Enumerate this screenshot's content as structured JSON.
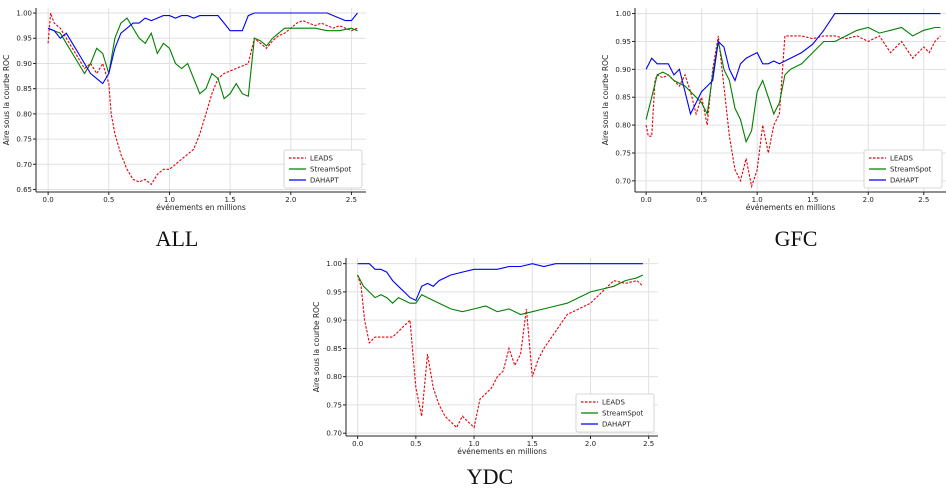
{
  "chart_data": [
    {
      "type": "line",
      "caption": "ALL",
      "xlabel": "événements en millions",
      "ylabel": "Aire sous la courbe ROC",
      "xlim": [
        -0.1,
        2.62
      ],
      "ylim": [
        0.645,
        1.01
      ],
      "xticks": [
        0.0,
        0.5,
        1.0,
        1.5,
        2.0,
        2.5
      ],
      "xtick_labels": [
        "0.0",
        "0.5",
        "1.0",
        "1.5",
        "2.0",
        "2.5"
      ],
      "yticks": [
        0.65,
        0.7,
        0.75,
        0.8,
        0.85,
        0.9,
        0.95,
        1.0
      ],
      "ytick_labels": [
        "0.65",
        "0.70",
        "0.75",
        "0.80",
        "0.85",
        "0.90",
        "0.95",
        "1.00"
      ],
      "grid": true,
      "legend_position": "lower-right",
      "series": [
        {
          "name": "LEADS",
          "color": "#e8000b",
          "style": "dashed",
          "x": [
            0.0,
            0.02,
            0.05,
            0.1,
            0.15,
            0.2,
            0.25,
            0.3,
            0.35,
            0.4,
            0.45,
            0.5,
            0.52,
            0.55,
            0.6,
            0.65,
            0.7,
            0.75,
            0.8,
            0.85,
            0.9,
            0.95,
            1.0,
            1.05,
            1.1,
            1.15,
            1.2,
            1.25,
            1.3,
            1.35,
            1.4,
            1.45,
            1.5,
            1.55,
            1.6,
            1.65,
            1.7,
            1.75,
            1.8,
            1.85,
            1.9,
            1.95,
            2.0,
            2.05,
            2.1,
            2.15,
            2.2,
            2.25,
            2.3,
            2.35,
            2.4,
            2.45,
            2.5,
            2.55
          ],
          "y": [
            0.94,
            1.0,
            0.98,
            0.97,
            0.95,
            0.93,
            0.91,
            0.89,
            0.9,
            0.88,
            0.9,
            0.86,
            0.8,
            0.76,
            0.72,
            0.69,
            0.67,
            0.665,
            0.67,
            0.66,
            0.68,
            0.69,
            0.69,
            0.7,
            0.71,
            0.72,
            0.73,
            0.76,
            0.8,
            0.84,
            0.87,
            0.88,
            0.885,
            0.89,
            0.895,
            0.9,
            0.95,
            0.94,
            0.93,
            0.945,
            0.955,
            0.96,
            0.97,
            0.98,
            0.985,
            0.98,
            0.975,
            0.98,
            0.975,
            0.97,
            0.975,
            0.97,
            0.965,
            0.97
          ]
        },
        {
          "name": "StreamSpot",
          "color": "#008000",
          "style": "solid",
          "x": [
            0.0,
            0.05,
            0.1,
            0.15,
            0.2,
            0.25,
            0.3,
            0.35,
            0.4,
            0.45,
            0.5,
            0.55,
            0.6,
            0.65,
            0.7,
            0.75,
            0.8,
            0.85,
            0.9,
            0.95,
            1.0,
            1.05,
            1.1,
            1.15,
            1.2,
            1.25,
            1.3,
            1.35,
            1.4,
            1.45,
            1.5,
            1.55,
            1.6,
            1.65,
            1.7,
            1.75,
            1.8,
            1.85,
            1.9,
            1.95,
            2.0,
            2.1,
            2.2,
            2.3,
            2.4,
            2.5,
            2.55
          ],
          "y": [
            0.97,
            0.965,
            0.96,
            0.94,
            0.92,
            0.9,
            0.88,
            0.9,
            0.93,
            0.92,
            0.88,
            0.95,
            0.98,
            0.99,
            0.97,
            0.95,
            0.94,
            0.96,
            0.92,
            0.94,
            0.93,
            0.9,
            0.89,
            0.9,
            0.87,
            0.84,
            0.85,
            0.88,
            0.87,
            0.83,
            0.84,
            0.86,
            0.84,
            0.835,
            0.95,
            0.945,
            0.935,
            0.95,
            0.96,
            0.97,
            0.97,
            0.97,
            0.97,
            0.965,
            0.965,
            0.97,
            0.965
          ]
        },
        {
          "name": "DAHAPT",
          "color": "#0000ff",
          "style": "solid",
          "x": [
            0.0,
            0.05,
            0.1,
            0.15,
            0.2,
            0.25,
            0.3,
            0.35,
            0.4,
            0.45,
            0.5,
            0.55,
            0.6,
            0.65,
            0.7,
            0.75,
            0.8,
            0.85,
            0.9,
            0.95,
            1.0,
            1.05,
            1.1,
            1.15,
            1.2,
            1.25,
            1.3,
            1.35,
            1.4,
            1.45,
            1.5,
            1.55,
            1.6,
            1.65,
            1.7,
            1.8,
            1.9,
            2.0,
            2.1,
            2.2,
            2.3,
            2.4,
            2.45,
            2.5,
            2.55
          ],
          "y": [
            0.97,
            0.965,
            0.95,
            0.96,
            0.94,
            0.92,
            0.9,
            0.88,
            0.87,
            0.86,
            0.88,
            0.93,
            0.96,
            0.97,
            0.98,
            0.98,
            0.99,
            0.985,
            0.99,
            0.995,
            0.995,
            0.99,
            0.995,
            0.995,
            0.99,
            0.995,
            0.995,
            0.995,
            0.995,
            0.98,
            0.965,
            0.965,
            0.965,
            0.995,
            1.0,
            1.0,
            1.0,
            1.0,
            1.0,
            1.0,
            1.0,
            0.99,
            0.985,
            0.985,
            1.0
          ]
        }
      ]
    },
    {
      "type": "line",
      "caption": "GFC",
      "xlabel": "événements en millions",
      "ylabel": "Aire sous la courbe ROC",
      "xlim": [
        -0.1,
        2.7
      ],
      "ylim": [
        0.68,
        1.01
      ],
      "xticks": [
        0.0,
        0.5,
        1.0,
        1.5,
        2.0,
        2.5
      ],
      "xtick_labels": [
        "0.0",
        "0.5",
        "1.0",
        "1.5",
        "2.0",
        "2.5"
      ],
      "yticks": [
        0.7,
        0.75,
        0.8,
        0.85,
        0.9,
        0.95,
        1.0
      ],
      "ytick_labels": [
        "0.70",
        "0.75",
        "0.80",
        "0.85",
        "0.90",
        "0.95",
        "1.00"
      ],
      "grid": true,
      "legend_position": "lower-right",
      "series": [
        {
          "name": "LEADS",
          "color": "#e8000b",
          "style": "dashed",
          "x": [
            0.0,
            0.02,
            0.05,
            0.08,
            0.1,
            0.15,
            0.2,
            0.25,
            0.3,
            0.35,
            0.4,
            0.45,
            0.5,
            0.55,
            0.6,
            0.65,
            0.7,
            0.75,
            0.8,
            0.85,
            0.9,
            0.95,
            1.0,
            1.05,
            1.1,
            1.15,
            1.2,
            1.25,
            1.3,
            1.4,
            1.5,
            1.6,
            1.7,
            1.8,
            1.9,
            2.0,
            2.1,
            2.2,
            2.3,
            2.4,
            2.5,
            2.55,
            2.6,
            2.65
          ],
          "y": [
            0.8,
            0.78,
            0.78,
            0.88,
            0.89,
            0.885,
            0.89,
            0.88,
            0.87,
            0.89,
            0.86,
            0.82,
            0.85,
            0.8,
            0.9,
            0.96,
            0.87,
            0.78,
            0.72,
            0.7,
            0.74,
            0.69,
            0.72,
            0.8,
            0.75,
            0.8,
            0.82,
            0.96,
            0.96,
            0.96,
            0.955,
            0.96,
            0.96,
            0.955,
            0.96,
            0.95,
            0.96,
            0.93,
            0.95,
            0.92,
            0.94,
            0.93,
            0.95,
            0.96
          ]
        },
        {
          "name": "StreamSpot",
          "color": "#008000",
          "style": "solid",
          "x": [
            0.0,
            0.05,
            0.1,
            0.15,
            0.2,
            0.25,
            0.3,
            0.35,
            0.4,
            0.45,
            0.5,
            0.55,
            0.6,
            0.65,
            0.7,
            0.75,
            0.8,
            0.85,
            0.9,
            0.95,
            1.0,
            1.05,
            1.1,
            1.15,
            1.2,
            1.25,
            1.3,
            1.4,
            1.5,
            1.6,
            1.7,
            1.8,
            1.9,
            2.0,
            2.1,
            2.2,
            2.3,
            2.4,
            2.5,
            2.6,
            2.65
          ],
          "y": [
            0.81,
            0.85,
            0.89,
            0.895,
            0.89,
            0.88,
            0.875,
            0.87,
            0.86,
            0.85,
            0.84,
            0.82,
            0.89,
            0.95,
            0.9,
            0.88,
            0.83,
            0.81,
            0.77,
            0.79,
            0.86,
            0.88,
            0.85,
            0.82,
            0.84,
            0.89,
            0.9,
            0.91,
            0.93,
            0.95,
            0.95,
            0.96,
            0.97,
            0.975,
            0.965,
            0.97,
            0.975,
            0.96,
            0.97,
            0.975,
            0.975
          ]
        },
        {
          "name": "DAHAPT",
          "color": "#0000ff",
          "style": "solid",
          "x": [
            0.0,
            0.05,
            0.1,
            0.15,
            0.2,
            0.25,
            0.3,
            0.35,
            0.4,
            0.45,
            0.5,
            0.55,
            0.6,
            0.65,
            0.7,
            0.75,
            0.8,
            0.85,
            0.9,
            0.95,
            1.0,
            1.05,
            1.1,
            1.15,
            1.2,
            1.3,
            1.4,
            1.5,
            1.6,
            1.7,
            1.8,
            1.9,
            2.0,
            2.1,
            2.2,
            2.3,
            2.4,
            2.5,
            2.6,
            2.65
          ],
          "y": [
            0.9,
            0.92,
            0.91,
            0.91,
            0.91,
            0.89,
            0.9,
            0.86,
            0.82,
            0.84,
            0.86,
            0.87,
            0.88,
            0.95,
            0.94,
            0.9,
            0.88,
            0.91,
            0.92,
            0.925,
            0.93,
            0.91,
            0.91,
            0.915,
            0.91,
            0.92,
            0.93,
            0.945,
            0.97,
            1.0,
            1.0,
            1.0,
            1.0,
            1.0,
            1.0,
            1.0,
            1.0,
            1.0,
            1.0,
            1.0
          ]
        }
      ]
    },
    {
      "type": "line",
      "caption": "YDC",
      "xlabel": "événements en millions",
      "ylabel": "Aire sous la courbe ROC",
      "xlim": [
        -0.1,
        2.58
      ],
      "ylim": [
        0.695,
        1.01
      ],
      "xticks": [
        0.0,
        0.5,
        1.0,
        1.5,
        2.0,
        2.5
      ],
      "xtick_labels": [
        "0.0",
        "0.5",
        "1.0",
        "1.5",
        "2.0",
        "2.5"
      ],
      "yticks": [
        0.7,
        0.75,
        0.8,
        0.85,
        0.9,
        0.95,
        1.0
      ],
      "ytick_labels": [
        "0.70",
        "0.75",
        "0.80",
        "0.85",
        "0.90",
        "0.95",
        "1.00"
      ],
      "grid": true,
      "legend_position": "lower-right",
      "series": [
        {
          "name": "LEADS",
          "color": "#e8000b",
          "style": "dashed",
          "x": [
            0.0,
            0.03,
            0.06,
            0.1,
            0.15,
            0.2,
            0.25,
            0.3,
            0.35,
            0.4,
            0.45,
            0.5,
            0.55,
            0.6,
            0.65,
            0.7,
            0.75,
            0.8,
            0.85,
            0.9,
            0.95,
            1.0,
            1.05,
            1.1,
            1.15,
            1.2,
            1.25,
            1.3,
            1.35,
            1.4,
            1.45,
            1.5,
            1.55,
            1.6,
            1.7,
            1.8,
            1.9,
            2.0,
            2.1,
            2.2,
            2.3,
            2.4,
            2.45
          ],
          "y": [
            0.98,
            0.96,
            0.9,
            0.86,
            0.87,
            0.87,
            0.87,
            0.87,
            0.88,
            0.89,
            0.9,
            0.78,
            0.73,
            0.84,
            0.78,
            0.75,
            0.73,
            0.72,
            0.71,
            0.73,
            0.72,
            0.71,
            0.76,
            0.77,
            0.78,
            0.8,
            0.81,
            0.85,
            0.82,
            0.84,
            0.92,
            0.8,
            0.83,
            0.85,
            0.88,
            0.91,
            0.92,
            0.93,
            0.95,
            0.97,
            0.965,
            0.97,
            0.96
          ]
        },
        {
          "name": "StreamSpot",
          "color": "#008000",
          "style": "solid",
          "x": [
            0.0,
            0.05,
            0.1,
            0.15,
            0.2,
            0.25,
            0.3,
            0.35,
            0.4,
            0.45,
            0.5,
            0.55,
            0.6,
            0.7,
            0.8,
            0.9,
            1.0,
            1.1,
            1.2,
            1.3,
            1.4,
            1.5,
            1.6,
            1.7,
            1.8,
            1.9,
            2.0,
            2.1,
            2.2,
            2.3,
            2.4,
            2.45
          ],
          "y": [
            0.98,
            0.96,
            0.95,
            0.94,
            0.945,
            0.94,
            0.93,
            0.94,
            0.935,
            0.93,
            0.93,
            0.945,
            0.94,
            0.93,
            0.92,
            0.915,
            0.92,
            0.925,
            0.915,
            0.92,
            0.91,
            0.915,
            0.92,
            0.925,
            0.93,
            0.94,
            0.95,
            0.955,
            0.96,
            0.97,
            0.975,
            0.98
          ]
        },
        {
          "name": "DAHAPT",
          "color": "#0000ff",
          "style": "solid",
          "x": [
            0.0,
            0.05,
            0.1,
            0.15,
            0.2,
            0.25,
            0.3,
            0.35,
            0.4,
            0.45,
            0.5,
            0.55,
            0.6,
            0.65,
            0.7,
            0.8,
            0.9,
            1.0,
            1.1,
            1.2,
            1.3,
            1.4,
            1.5,
            1.6,
            1.7,
            1.8,
            1.9,
            2.0,
            2.2,
            2.4,
            2.45
          ],
          "y": [
            1.0,
            1.0,
            1.0,
            0.99,
            0.99,
            0.985,
            0.97,
            0.96,
            0.95,
            0.94,
            0.935,
            0.96,
            0.965,
            0.96,
            0.97,
            0.98,
            0.985,
            0.99,
            0.99,
            0.99,
            0.995,
            0.995,
            1.0,
            0.995,
            1.0,
            1.0,
            1.0,
            1.0,
            1.0,
            1.0,
            1.0
          ]
        }
      ]
    }
  ]
}
